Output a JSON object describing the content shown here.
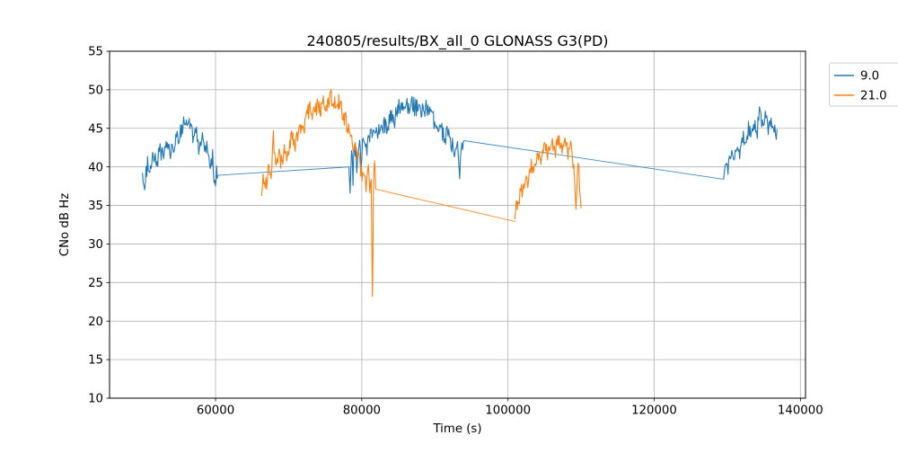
{
  "figure": {
    "title": "240805/results/BX_all_0 GLONASS G3(PD)"
  },
  "axes": {
    "xlabel": "Time (s)",
    "ylabel": "CNo dB Hz",
    "xlim": [
      45500,
      140700
    ],
    "ylim": [
      10,
      55
    ],
    "xticks": {
      "values": [
        60000,
        80000,
        100000,
        120000,
        140000
      ],
      "labels": [
        "60000",
        "80000",
        "100000",
        "120000",
        "140000"
      ]
    },
    "yticks": {
      "values": [
        10,
        15,
        20,
        25,
        30,
        35,
        40,
        45,
        50,
        55
      ],
      "labels": [
        "10",
        "15",
        "20",
        "25",
        "30",
        "35",
        "40",
        "45",
        "50",
        "55"
      ]
    },
    "grid": true,
    "grid_color": "#b0b0b0"
  },
  "legend": {
    "position": "outside-top-right",
    "items": [
      {
        "label": "9.0",
        "color": "#1f77b4"
      },
      {
        "label": "21.0",
        "color": "#ff7f0e"
      }
    ]
  },
  "chart_data": {
    "type": "line",
    "title": "240805/results/BX_all_0 GLONASS G3(PD)",
    "xlabel": "Time (s)",
    "ylabel": "CNo dB Hz",
    "xlim": [
      45500,
      140700
    ],
    "ylim": [
      10,
      55
    ],
    "legend_position": "outside-top-right",
    "grid": true,
    "series": [
      {
        "name": "9.0",
        "color": "#1f77b4",
        "segments": [
          {
            "kind": "noisy",
            "noise": 1.1,
            "points": [
              [
                50000,
                39.2
              ],
              [
                50300,
                37.8
              ],
              [
                50700,
                40.5
              ],
              [
                51100,
                39.5
              ],
              [
                51500,
                41.5
              ],
              [
                52000,
                40.5
              ],
              [
                52400,
                42.3
              ],
              [
                52900,
                41.2
              ],
              [
                53400,
                42.8
              ],
              [
                53900,
                42.0
              ],
              [
                54400,
                43.2
              ],
              [
                54900,
                43.8
              ],
              [
                55300,
                44.6
              ],
              [
                55800,
                46.2
              ],
              [
                56100,
                44.8
              ],
              [
                56500,
                45.6
              ],
              [
                56900,
                43.6
              ],
              [
                57300,
                44.9
              ],
              [
                57700,
                42.6
              ],
              [
                58100,
                44.2
              ],
              [
                58500,
                41.6
              ],
              [
                58900,
                43.0
              ],
              [
                59300,
                39.8
              ],
              [
                59600,
                41.3
              ],
              [
                59900,
                37.6
              ],
              [
                60150,
                39.6
              ],
              [
                60300,
                38.9
              ]
            ]
          },
          {
            "kind": "gap-connector",
            "points": [
              [
                60300,
                38.9
              ],
              [
                78250,
                40.0
              ]
            ]
          },
          {
            "kind": "noisy",
            "noise": 1.2,
            "points": [
              [
                78250,
                40.0
              ],
              [
                78400,
                37.6
              ],
              [
                78600,
                42.8
              ],
              [
                78800,
                38.6
              ],
              [
                79000,
                43.4
              ],
              [
                79300,
                39.8
              ],
              [
                79600,
                43.2
              ],
              [
                79900,
                41.0
              ],
              [
                80200,
                43.8
              ],
              [
                80600,
                42.2
              ],
              [
                81000,
                44.2
              ],
              [
                81500,
                43.4
              ],
              [
                82000,
                45.0
              ],
              [
                82500,
                44.2
              ],
              [
                83000,
                45.6
              ],
              [
                83500,
                45.2
              ],
              [
                84000,
                46.6
              ],
              [
                84500,
                46.2
              ],
              [
                85000,
                47.6
              ],
              [
                85500,
                48.1
              ],
              [
                86000,
                48.6
              ],
              [
                86400,
                47.7
              ],
              [
                86800,
                48.4
              ],
              [
                87300,
                47.6
              ],
              [
                87800,
                48.2
              ],
              [
                88300,
                47.2
              ],
              [
                88800,
                47.8
              ],
              [
                89300,
                46.6
              ],
              [
                89800,
                46.0
              ],
              [
                90300,
                44.8
              ],
              [
                90800,
                45.4
              ],
              [
                91300,
                43.6
              ],
              [
                91800,
                44.6
              ],
              [
                92200,
                42.0
              ],
              [
                92500,
                43.4
              ],
              [
                92800,
                41.2
              ],
              [
                93100,
                42.6
              ],
              [
                93400,
                39.2
              ],
              [
                93700,
                43.2
              ],
              [
                94000,
                43.4
              ]
            ]
          },
          {
            "kind": "gap-connector",
            "points": [
              [
                94000,
                43.4
              ],
              [
                129500,
                38.4
              ]
            ]
          },
          {
            "kind": "noisy",
            "noise": 1.1,
            "points": [
              [
                129500,
                38.4
              ],
              [
                129800,
                41.0
              ],
              [
                130100,
                39.2
              ],
              [
                130500,
                42.2
              ],
              [
                130900,
                40.0
              ],
              [
                131300,
                43.0
              ],
              [
                131700,
                41.2
              ],
              [
                132100,
                44.0
              ],
              [
                132500,
                42.6
              ],
              [
                132900,
                45.0
              ],
              [
                133300,
                43.8
              ],
              [
                133700,
                45.6
              ],
              [
                134100,
                44.6
              ],
              [
                134400,
                47.2
              ],
              [
                134800,
                45.6
              ],
              [
                135200,
                46.6
              ],
              [
                135600,
                44.6
              ],
              [
                135900,
                46.2
              ],
              [
                136200,
                44.2
              ],
              [
                136500,
                46.0
              ],
              [
                136700,
                43.8
              ],
              [
                136800,
                44.9
              ]
            ]
          }
        ]
      },
      {
        "name": "21.0",
        "color": "#ff7f0e",
        "segments": [
          {
            "kind": "noisy",
            "noise": 1.2,
            "points": [
              [
                66300,
                35.5
              ],
              [
                66500,
                38.0
              ],
              [
                66800,
                36.8
              ],
              [
                67200,
                39.6
              ],
              [
                67600,
                38.4
              ],
              [
                67900,
                43.8
              ],
              [
                68200,
                40.2
              ],
              [
                68600,
                42.0
              ],
              [
                69000,
                40.4
              ],
              [
                69400,
                42.6
              ],
              [
                69900,
                41.4
              ],
              [
                70400,
                44.0
              ],
              [
                70900,
                42.8
              ],
              [
                71400,
                45.4
              ],
              [
                71900,
                44.4
              ],
              [
                72400,
                46.6
              ],
              [
                72900,
                47.6
              ],
              [
                73400,
                46.8
              ],
              [
                73900,
                48.0
              ],
              [
                74400,
                47.4
              ],
              [
                74900,
                48.6
              ],
              [
                75400,
                48.0
              ],
              [
                75900,
                49.1
              ],
              [
                76300,
                48.2
              ],
              [
                76700,
                48.8
              ],
              [
                77200,
                47.4
              ],
              [
                77700,
                46.2
              ],
              [
                78200,
                45.0
              ],
              [
                78700,
                43.4
              ],
              [
                79200,
                41.8
              ],
              [
                79700,
                40.4
              ],
              [
                80200,
                38.8
              ],
              [
                80600,
                37.6
              ],
              [
                80900,
                39.4
              ],
              [
                81100,
                36.2
              ],
              [
                81300,
                37.8
              ],
              [
                81450,
                22.5
              ],
              [
                81600,
                36.8
              ],
              [
                81750,
                40.4
              ],
              [
                81900,
                37.1
              ]
            ]
          },
          {
            "kind": "gap-connector",
            "points": [
              [
                81900,
                37.1
              ],
              [
                101050,
                32.9
              ]
            ]
          },
          {
            "kind": "noisy",
            "noise": 1.0,
            "points": [
              [
                100950,
                32.6
              ],
              [
                101200,
                35.8
              ],
              [
                101450,
                34.4
              ],
              [
                101750,
                37.4
              ],
              [
                102050,
                36.4
              ],
              [
                102400,
                38.8
              ],
              [
                102800,
                37.9
              ],
              [
                103200,
                40.4
              ],
              [
                103600,
                39.4
              ],
              [
                104000,
                41.4
              ],
              [
                104500,
                40.6
              ],
              [
                105000,
                42.4
              ],
              [
                105500,
                41.8
              ],
              [
                106000,
                43.0
              ],
              [
                106500,
                42.2
              ],
              [
                107000,
                43.6
              ],
              [
                107400,
                42.4
              ],
              [
                107800,
                43.2
              ],
              [
                108200,
                41.8
              ],
              [
                108600,
                42.6
              ],
              [
                109000,
                39.6
              ],
              [
                109300,
                35.4
              ],
              [
                109600,
                41.2
              ],
              [
                109800,
                37.8
              ],
              [
                110000,
                34.6
              ]
            ]
          }
        ]
      }
    ]
  }
}
